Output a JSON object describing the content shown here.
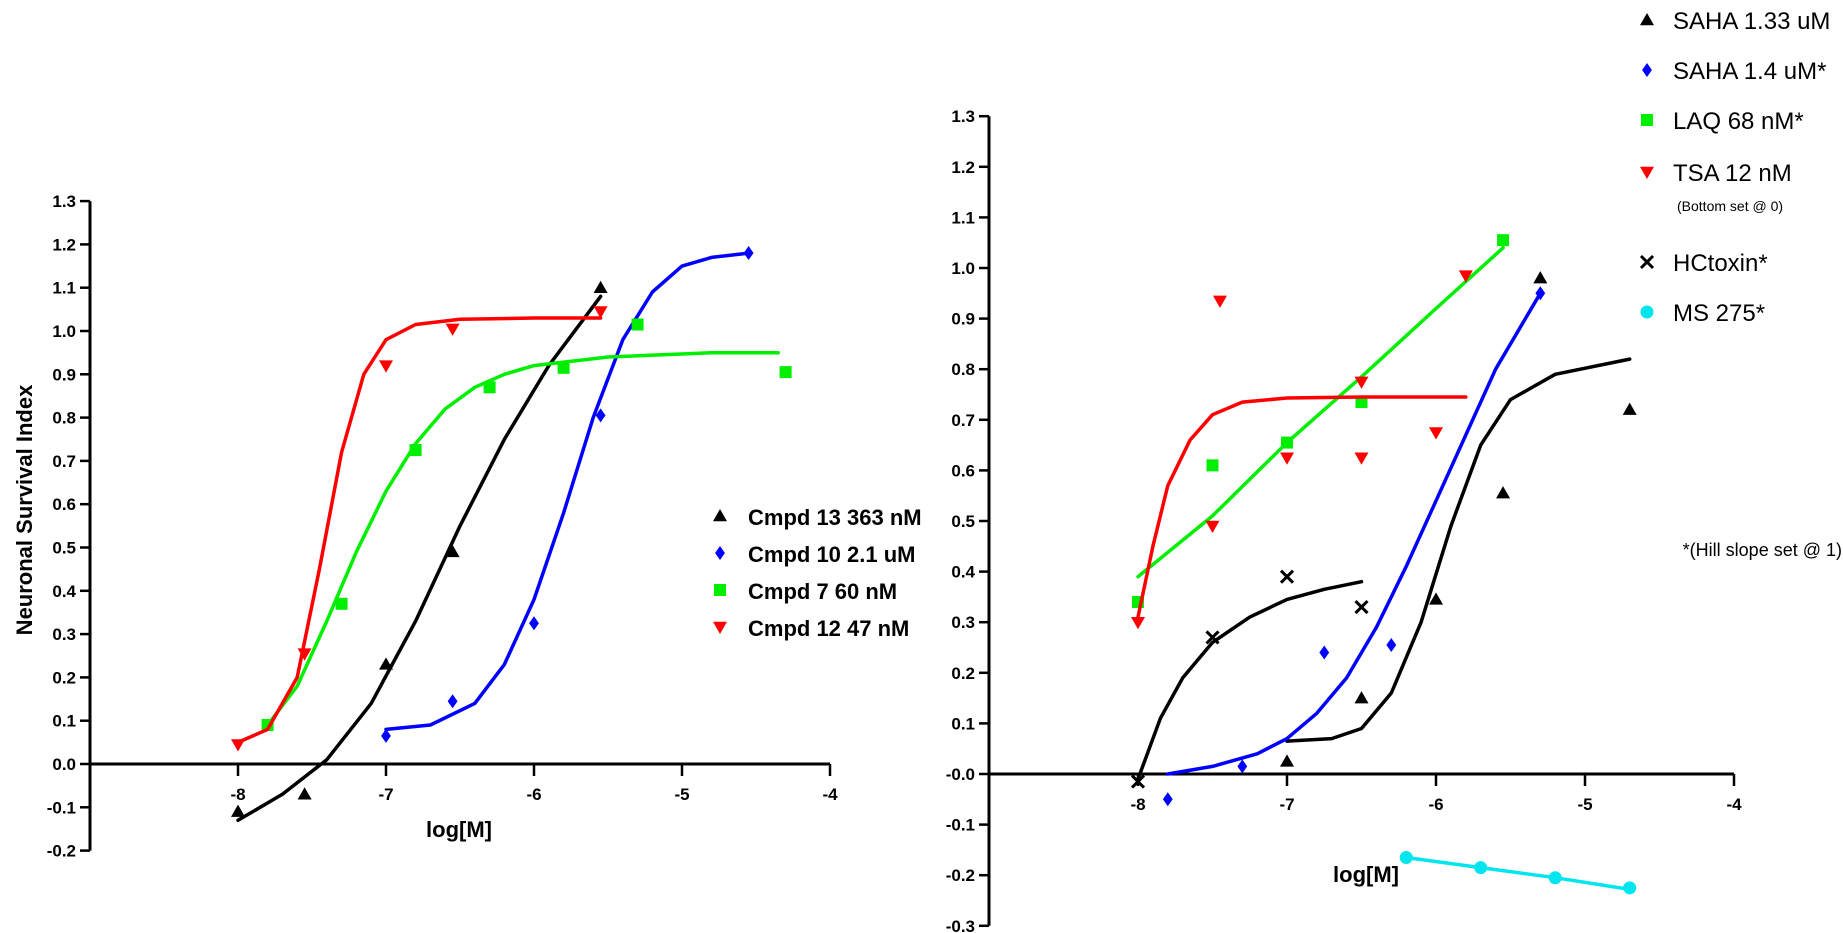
{
  "chart_data": [
    {
      "type": "scatter",
      "title": "",
      "xlabel": "log[M]",
      "ylabel": "Neuronal Survival Index",
      "xlim": [
        -9.0,
        -4.0
      ],
      "ylim": [
        -0.2,
        1.3
      ],
      "xticks": [
        -8,
        -7,
        -6,
        -5,
        -4
      ],
      "xtick_labels": [
        "-8",
        "-7",
        "-6",
        "-5",
        "-4"
      ],
      "yticks": [
        -0.2,
        -0.1,
        0.0,
        0.1,
        0.2,
        0.3,
        0.4,
        0.5,
        0.6,
        0.7,
        0.8,
        0.9,
        1.0,
        1.1,
        1.2,
        1.3
      ],
      "ytick_labels": [
        "-0.2",
        "-0.1",
        "0.0",
        "0.1",
        "0.2",
        "0.3",
        "0.4",
        "0.5",
        "0.6",
        "0.7",
        "0.8",
        "0.9",
        "1.0",
        "1.1",
        "1.2",
        "1.3"
      ],
      "legend_position": "right",
      "series": [
        {
          "name": "Cmpd 13 363 nM",
          "color": "#000000",
          "marker": "triangle-up",
          "points": [
            [
              -8.0,
              -0.11
            ],
            [
              -7.55,
              -0.07
            ],
            [
              -7.0,
              0.23
            ],
            [
              -6.55,
              0.49
            ],
            [
              -5.55,
              1.1
            ]
          ],
          "curve": [
            [
              -8.0,
              -0.13
            ],
            [
              -7.7,
              -0.07
            ],
            [
              -7.4,
              0.01
            ],
            [
              -7.1,
              0.14
            ],
            [
              -6.8,
              0.33
            ],
            [
              -6.5,
              0.55
            ],
            [
              -6.2,
              0.75
            ],
            [
              -5.9,
              0.92
            ],
            [
              -5.55,
              1.08
            ]
          ]
        },
        {
          "name": "Cmpd 10 2.1 uM",
          "color": "#0000ff",
          "marker": "diamond",
          "points": [
            [
              -7.0,
              0.065
            ],
            [
              -6.55,
              0.145
            ],
            [
              -6.0,
              0.325
            ],
            [
              -5.55,
              0.805
            ],
            [
              -4.55,
              1.18
            ]
          ],
          "curve": [
            [
              -7.0,
              0.08
            ],
            [
              -6.7,
              0.09
            ],
            [
              -6.4,
              0.14
            ],
            [
              -6.2,
              0.23
            ],
            [
              -6.0,
              0.38
            ],
            [
              -5.8,
              0.58
            ],
            [
              -5.6,
              0.8
            ],
            [
              -5.4,
              0.98
            ],
            [
              -5.2,
              1.09
            ],
            [
              -5.0,
              1.15
            ],
            [
              -4.8,
              1.17
            ],
            [
              -4.55,
              1.18
            ]
          ]
        },
        {
          "name": "Cmpd 7 60 nM",
          "color": "#00ee00",
          "marker": "square",
          "points": [
            [
              -7.8,
              0.09
            ],
            [
              -7.3,
              0.37
            ],
            [
              -6.8,
              0.725
            ],
            [
              -6.3,
              0.87
            ],
            [
              -5.8,
              0.915
            ],
            [
              -5.3,
              1.015
            ],
            [
              -4.3,
              0.905
            ]
          ],
          "curve": [
            [
              -7.8,
              0.09
            ],
            [
              -7.6,
              0.18
            ],
            [
              -7.4,
              0.33
            ],
            [
              -7.2,
              0.49
            ],
            [
              -7.0,
              0.63
            ],
            [
              -6.8,
              0.74
            ],
            [
              -6.6,
              0.82
            ],
            [
              -6.4,
              0.87
            ],
            [
              -6.2,
              0.9
            ],
            [
              -6.0,
              0.92
            ],
            [
              -5.5,
              0.94
            ],
            [
              -4.8,
              0.95
            ],
            [
              -4.35,
              0.95
            ]
          ]
        },
        {
          "name": "Cmpd 12 47 nM",
          "color": "#ff0000",
          "marker": "triangle-down",
          "points": [
            [
              -8.0,
              0.045
            ],
            [
              -7.55,
              0.255
            ],
            [
              -7.0,
              0.92
            ],
            [
              -6.55,
              1.005
            ],
            [
              -5.55,
              1.045
            ]
          ],
          "curve": [
            [
              -8.0,
              0.05
            ],
            [
              -7.8,
              0.08
            ],
            [
              -7.6,
              0.2
            ],
            [
              -7.45,
              0.45
            ],
            [
              -7.3,
              0.72
            ],
            [
              -7.15,
              0.9
            ],
            [
              -7.0,
              0.98
            ],
            [
              -6.8,
              1.015
            ],
            [
              -6.5,
              1.027
            ],
            [
              -6.0,
              1.03
            ],
            [
              -5.55,
              1.03
            ]
          ]
        }
      ]
    },
    {
      "type": "scatter",
      "title": "",
      "xlabel": "log[M]",
      "ylabel": "",
      "xlim": [
        -9.0,
        -4.0
      ],
      "ylim": [
        -0.3,
        1.3
      ],
      "xticks": [
        -8,
        -7,
        -6,
        -5,
        -4
      ],
      "xtick_labels": [
        "-8",
        "-7",
        "-6",
        "-5",
        "-4"
      ],
      "yticks": [
        -0.3,
        -0.2,
        -0.1,
        0.0,
        0.1,
        0.2,
        0.3,
        0.4,
        0.5,
        0.6,
        0.7,
        0.8,
        0.9,
        1.0,
        1.1,
        1.2,
        1.3
      ],
      "ytick_labels": [
        "-0.3",
        "-0.2",
        "-0.1",
        "-0.0",
        "0.1",
        "0.2",
        "0.3",
        "0.4",
        "0.5",
        "0.6",
        "0.7",
        "0.8",
        "0.9",
        "1.0",
        "1.1",
        "1.2",
        "1.3"
      ],
      "legend_position": "top-right",
      "annotation": "*(Hill slope set @ 1)",
      "series": [
        {
          "name": "SAHA 1.33 uM",
          "color": "#000000",
          "marker": "triangle-up",
          "points": [
            [
              -7.0,
              0.025
            ],
            [
              -6.5,
              0.15
            ],
            [
              -6.0,
              0.345
            ],
            [
              -5.55,
              0.555
            ],
            [
              -5.3,
              0.98
            ],
            [
              -4.7,
              0.72
            ]
          ],
          "curve": [
            [
              -7.0,
              0.065
            ],
            [
              -6.7,
              0.07
            ],
            [
              -6.5,
              0.09
            ],
            [
              -6.3,
              0.16
            ],
            [
              -6.1,
              0.3
            ],
            [
              -5.9,
              0.49
            ],
            [
              -5.7,
              0.65
            ],
            [
              -5.5,
              0.74
            ],
            [
              -5.2,
              0.79
            ],
            [
              -4.7,
              0.82
            ]
          ]
        },
        {
          "name": "SAHA 1.4 uM*",
          "color": "#0000ff",
          "marker": "diamond",
          "points": [
            [
              -7.8,
              -0.05
            ],
            [
              -7.3,
              0.015
            ],
            [
              -6.75,
              0.24
            ],
            [
              -6.3,
              0.255
            ],
            [
              -5.3,
              0.95
            ]
          ],
          "curve": [
            [
              -7.8,
              0.0
            ],
            [
              -7.5,
              0.015
            ],
            [
              -7.2,
              0.04
            ],
            [
              -7.0,
              0.07
            ],
            [
              -6.8,
              0.12
            ],
            [
              -6.6,
              0.19
            ],
            [
              -6.4,
              0.29
            ],
            [
              -6.2,
              0.41
            ],
            [
              -6.0,
              0.54
            ],
            [
              -5.8,
              0.67
            ],
            [
              -5.6,
              0.8
            ],
            [
              -5.3,
              0.95
            ]
          ]
        },
        {
          "name": "LAQ 68 nM*",
          "color": "#00ee00",
          "marker": "square",
          "points": [
            [
              -8.0,
              0.34
            ],
            [
              -7.5,
              0.61
            ],
            [
              -7.0,
              0.655
            ],
            [
              -6.5,
              0.735
            ],
            [
              -5.55,
              1.055
            ]
          ],
          "curve": [
            [
              -8.0,
              0.39
            ],
            [
              -7.5,
              0.51
            ],
            [
              -7.0,
              0.655
            ],
            [
              -6.5,
              0.785
            ],
            [
              -6.0,
              0.92
            ],
            [
              -5.55,
              1.04
            ]
          ]
        },
        {
          "name": "TSA 12 nM",
          "color": "#ff0000",
          "marker": "triangle-down",
          "points": [
            [
              -8.0,
              0.3
            ],
            [
              -7.5,
              0.49
            ],
            [
              -7.45,
              0.935
            ],
            [
              -7.0,
              0.625
            ],
            [
              -6.5,
              0.775
            ],
            [
              -6.5,
              0.625
            ],
            [
              -6.0,
              0.675
            ],
            [
              -5.8,
              0.985
            ]
          ],
          "curve": [
            [
              -8.0,
              0.31
            ],
            [
              -7.9,
              0.45
            ],
            [
              -7.8,
              0.57
            ],
            [
              -7.65,
              0.66
            ],
            [
              -7.5,
              0.71
            ],
            [
              -7.3,
              0.735
            ],
            [
              -7.0,
              0.743
            ],
            [
              -6.5,
              0.745
            ],
            [
              -5.8,
              0.745
            ]
          ]
        },
        {
          "name": "HCtoxin*",
          "color": "#000000",
          "marker": "x",
          "points": [
            [
              -8.0,
              -0.015
            ],
            [
              -7.5,
              0.27
            ],
            [
              -7.0,
              0.39
            ],
            [
              -6.5,
              0.33
            ]
          ],
          "curve": [
            [
              -8.0,
              -0.01
            ],
            [
              -7.85,
              0.11
            ],
            [
              -7.7,
              0.19
            ],
            [
              -7.5,
              0.26
            ],
            [
              -7.25,
              0.31
            ],
            [
              -7.0,
              0.345
            ],
            [
              -6.75,
              0.365
            ],
            [
              -6.5,
              0.38
            ]
          ]
        },
        {
          "name": "MS 275*",
          "color": "#00e5ee",
          "marker": "circle",
          "points": [
            [
              -6.2,
              -0.165
            ],
            [
              -5.7,
              -0.185
            ],
            [
              -5.2,
              -0.205
            ],
            [
              -4.7,
              -0.225
            ]
          ],
          "curve": [
            [
              -6.2,
              -0.165
            ],
            [
              -5.7,
              -0.185
            ],
            [
              -5.2,
              -0.205
            ],
            [
              -4.7,
              -0.228
            ]
          ]
        }
      ],
      "legend_notes": {
        "TSA 12 nM": "(Bottom set @ 0)"
      }
    }
  ]
}
